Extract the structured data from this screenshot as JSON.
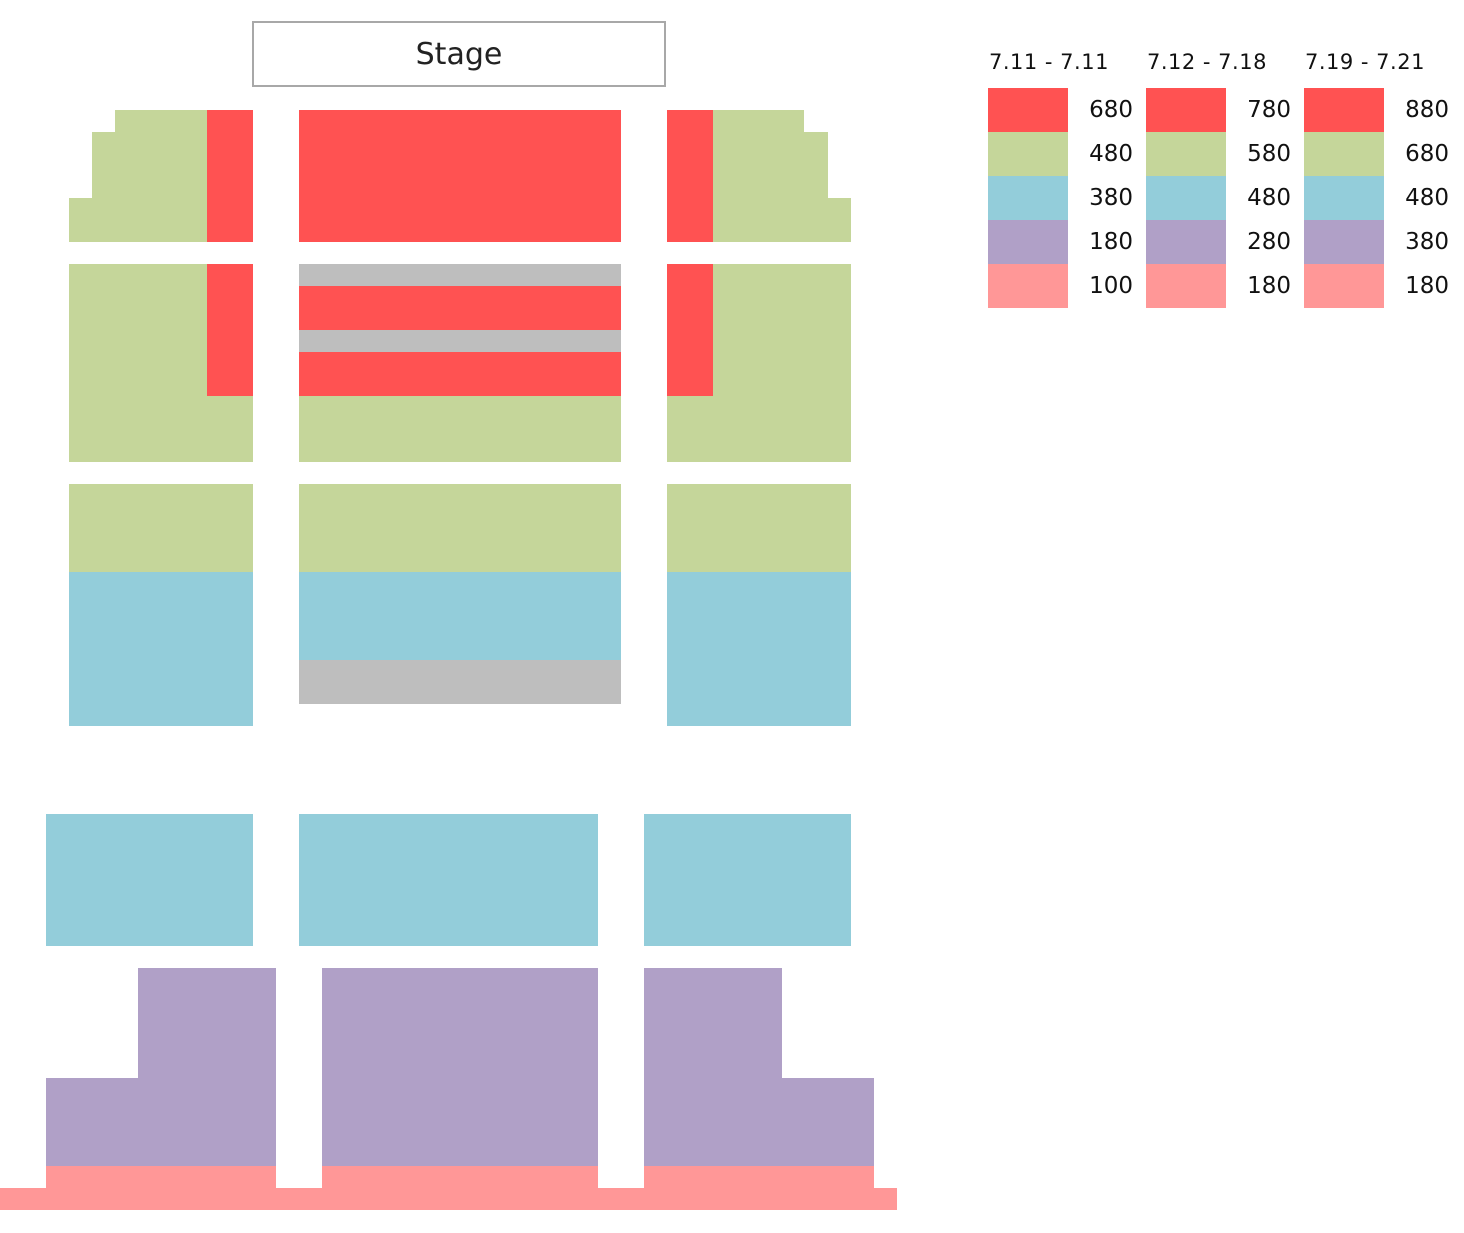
{
  "stage": {
    "label": "Stage"
  },
  "colors": {
    "red": "#ff5252",
    "green": "#c5d69a",
    "blue": "#93cdda",
    "purple": "#b0a0c7",
    "pink": "#ff9797",
    "gray": "#bebebe"
  },
  "legend": {
    "tiers": [
      "red",
      "green",
      "blue",
      "purple",
      "pink"
    ],
    "columns": [
      {
        "dates": "7.11 - 7.11",
        "prices": [
          "680",
          "480",
          "380",
          "180",
          "100"
        ]
      },
      {
        "dates": "7.12 - 7.18",
        "prices": [
          "780",
          "580",
          "480",
          "280",
          "180"
        ]
      },
      {
        "dates": "7.19 - 7.21",
        "prices": [
          "880",
          "680",
          "480",
          "380",
          "180"
        ]
      }
    ]
  }
}
